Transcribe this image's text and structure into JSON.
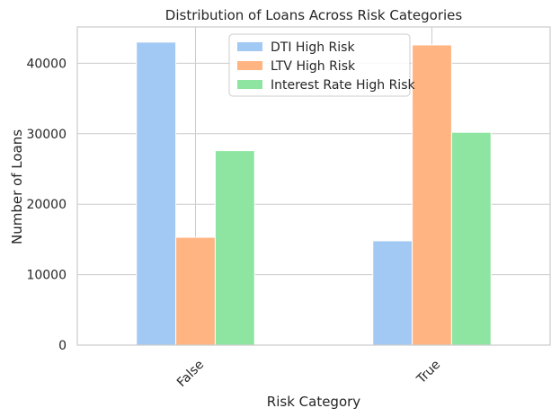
{
  "chart_data": {
    "type": "bar",
    "title": "Distribution of Loans Across Risk Categories",
    "xlabel": "Risk Category",
    "ylabel": "Number of Loans",
    "categories": [
      "False",
      "True"
    ],
    "series": [
      {
        "name": "DTI High Risk",
        "values": [
          43000,
          14800
        ],
        "color": "#a1c9f4"
      },
      {
        "name": "LTV High Risk",
        "values": [
          15300,
          42600
        ],
        "color": "#ffb482"
      },
      {
        "name": "Interest Rate High Risk",
        "values": [
          27600,
          30200
        ],
        "color": "#8de5a1"
      }
    ],
    "ylim": [
      0,
      45150
    ],
    "yticks": [
      0,
      10000,
      20000,
      30000,
      40000
    ],
    "ytick_labels": [
      "0",
      "10000",
      "20000",
      "30000",
      "40000"
    ],
    "grid": true,
    "legend_position": "upper center",
    "xtick_rotation": 45
  }
}
